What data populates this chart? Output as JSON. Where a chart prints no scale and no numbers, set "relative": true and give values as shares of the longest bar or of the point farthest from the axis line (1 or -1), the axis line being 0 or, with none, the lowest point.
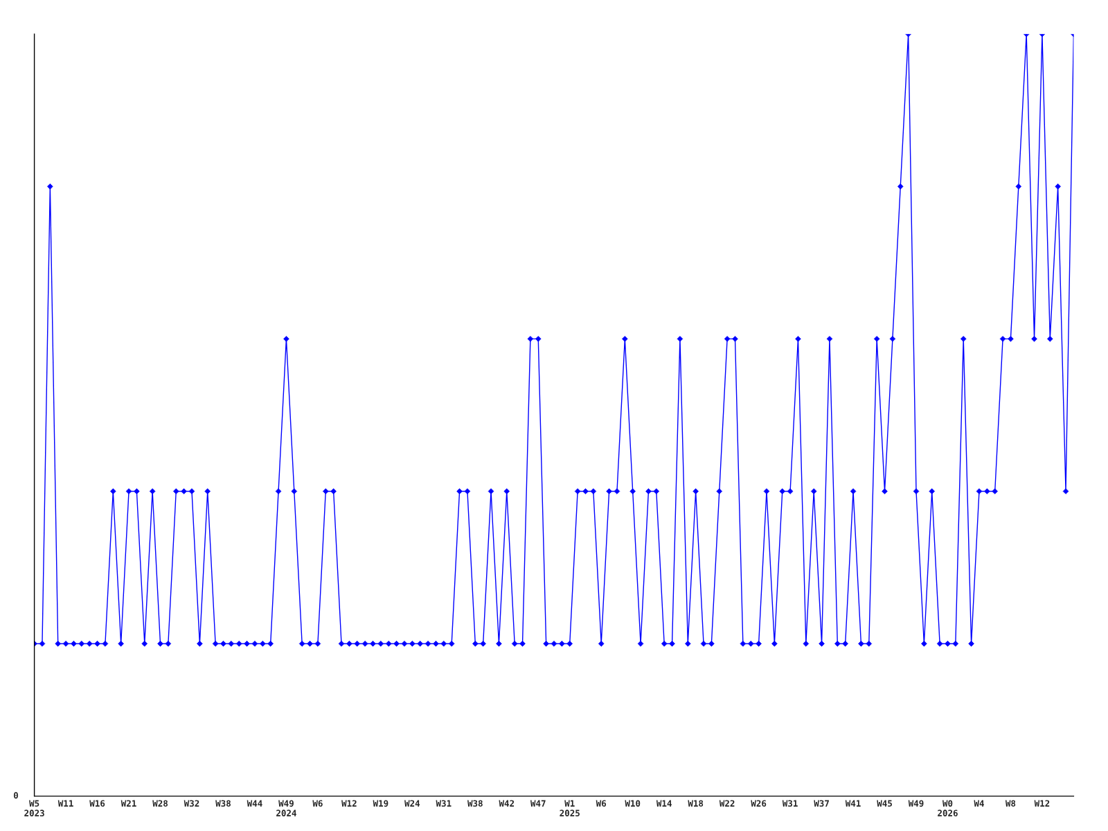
{
  "chart_data": {
    "type": "line",
    "relative": true,
    "marker": "diamond",
    "line_style": "solid",
    "grid": false,
    "legend": false,
    "categories": [
      "W5\n2023",
      null,
      null,
      null,
      "W11",
      null,
      null,
      null,
      "W16",
      null,
      null,
      null,
      "W21",
      null,
      null,
      null,
      "W28",
      null,
      null,
      null,
      "W32",
      null,
      null,
      null,
      "W38",
      null,
      null,
      null,
      "W44",
      null,
      null,
      null,
      "W49\n2024",
      null,
      null,
      null,
      "W6",
      null,
      null,
      null,
      "W12",
      null,
      null,
      null,
      "W19",
      null,
      null,
      null,
      "W24",
      null,
      null,
      null,
      "W31",
      null,
      null,
      null,
      "W38",
      null,
      null,
      null,
      "W42",
      null,
      null,
      null,
      "W47",
      null,
      null,
      null,
      "W1\n2025",
      null,
      null,
      null,
      "W6",
      null,
      null,
      null,
      "W10",
      null,
      null,
      null,
      "W14",
      null,
      null,
      null,
      "W18",
      null,
      null,
      null,
      "W22",
      null,
      null,
      null,
      "W26",
      null,
      null,
      null,
      "W31",
      null,
      null,
      null,
      "W37",
      null,
      null,
      null,
      "W41",
      null,
      null,
      null,
      "W45",
      null,
      null,
      null,
      "W49",
      null,
      null,
      null,
      "W0\n2026",
      null,
      null,
      null,
      "W4",
      null,
      null,
      null,
      "W8",
      null,
      null,
      null,
      "W12",
      null,
      null,
      null,
      null
    ],
    "series": [
      {
        "color": "#0000ff",
        "values": [
          0.2,
          0.2,
          0.8,
          0.2,
          0.2,
          0.2,
          0.2,
          0.2,
          0.2,
          0.2,
          0.4,
          0.2,
          0.4,
          0.4,
          0.2,
          0.4,
          0.2,
          0.2,
          0.4,
          0.4,
          0.4,
          0.2,
          0.4,
          0.2,
          0.2,
          0.2,
          0.2,
          0.2,
          0.2,
          0.2,
          0.2,
          0.4,
          0.6,
          0.4,
          0.2,
          0.2,
          0.2,
          0.4,
          0.4,
          0.2,
          0.2,
          0.2,
          0.2,
          0.2,
          0.2,
          0.2,
          0.2,
          0.2,
          0.2,
          0.2,
          0.2,
          0.2,
          0.2,
          0.2,
          0.4,
          0.4,
          0.2,
          0.2,
          0.4,
          0.2,
          0.4,
          0.2,
          0.2,
          0.6,
          0.6,
          0.2,
          0.2,
          0.2,
          0.2,
          0.4,
          0.4,
          0.4,
          0.2,
          0.4,
          0.4,
          0.6,
          0.4,
          0.2,
          0.4,
          0.4,
          0.2,
          0.2,
          0.6,
          0.2,
          0.4,
          0.2,
          0.2,
          0.4,
          0.6,
          0.6,
          0.2,
          0.2,
          0.2,
          0.4,
          0.2,
          0.4,
          0.4,
          0.6,
          0.2,
          0.4,
          0.2,
          0.6,
          0.2,
          0.2,
          0.4,
          0.2,
          0.2,
          0.6,
          0.4,
          0.6,
          0.8,
          1.0,
          0.4,
          0.2,
          0.4,
          0.2,
          0.2,
          0.2,
          0.6,
          0.2,
          0.4,
          0.4,
          0.4,
          0.6,
          0.6,
          0.8,
          1.0,
          0.6,
          1.0,
          0.6,
          0.8,
          0.4,
          1.0
        ]
      }
    ],
    "annotations": [
      "0"
    ]
  }
}
